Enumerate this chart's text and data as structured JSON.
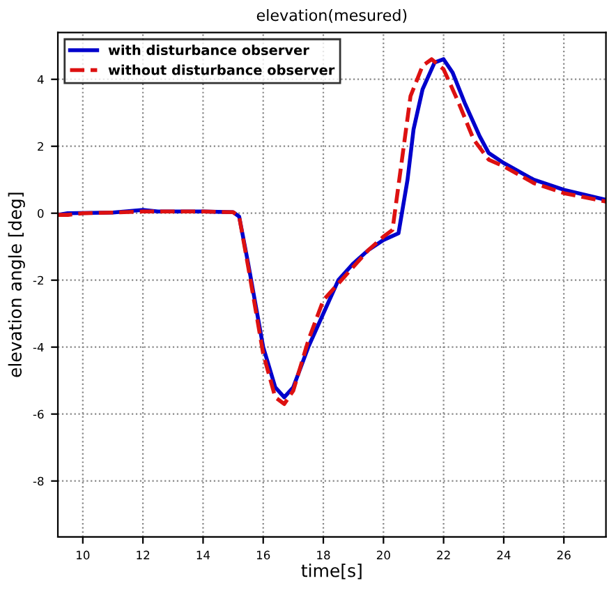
{
  "chart_data": {
    "type": "line",
    "title": "elevation(mesured)",
    "xlabel": "time[s]",
    "ylabel": "elevation angle [deg]",
    "xlim": [
      9.17,
      27.4
    ],
    "ylim": [
      -9.67,
      5.4
    ],
    "xticks": [
      10,
      12,
      14,
      16,
      18,
      20,
      22,
      24,
      26
    ],
    "yticks": [
      -8,
      -6,
      -4,
      -2,
      0,
      2,
      4
    ],
    "grid": true,
    "legend": "top left",
    "series": [
      {
        "name": "with disturbance observer",
        "color": "#0000cc",
        "line_style": "solid",
        "x": [
          9.17,
          9.5,
          11,
          12,
          12.5,
          14,
          15,
          15.2,
          15.5,
          16,
          16.4,
          16.7,
          17,
          17.5,
          18,
          18.5,
          19,
          19.5,
          20,
          20.5,
          20.8,
          21,
          21.3,
          21.7,
          22,
          22.3,
          22.7,
          23.2,
          23.5,
          24,
          25,
          26,
          27.4
        ],
        "values": [
          -0.05,
          0,
          0.02,
          0.1,
          0.05,
          0.05,
          0.03,
          -0.1,
          -1.5,
          -4,
          -5.2,
          -5.5,
          -5.2,
          -4,
          -3,
          -2,
          -1.5,
          -1.1,
          -0.8,
          -0.6,
          1,
          2.5,
          3.7,
          4.5,
          4.6,
          4.2,
          3.3,
          2.3,
          1.8,
          1.5,
          1,
          0.7,
          0.4
        ]
      },
      {
        "name": "without disturbance observer",
        "color": "#dd1111",
        "line_style": "dashed",
        "x": [
          9.17,
          9.5,
          10,
          11,
          12,
          14,
          15,
          15.2,
          15.5,
          16,
          16.4,
          16.7,
          17,
          17.5,
          18,
          18.5,
          19,
          19.5,
          20,
          20.3,
          20.6,
          20.9,
          21.3,
          21.6,
          22,
          22.5,
          23,
          23.5,
          24,
          25,
          26,
          27.4
        ],
        "values": [
          -0.05,
          -0.05,
          0,
          0.02,
          0.05,
          0.05,
          0.03,
          -0.1,
          -1.6,
          -4.2,
          -5.5,
          -5.7,
          -5.3,
          -3.8,
          -2.6,
          -2.1,
          -1.6,
          -1.1,
          -0.7,
          -0.5,
          1.5,
          3.5,
          4.4,
          4.6,
          4.3,
          3.3,
          2.2,
          1.6,
          1.4,
          0.9,
          0.6,
          0.35
        ]
      }
    ]
  }
}
